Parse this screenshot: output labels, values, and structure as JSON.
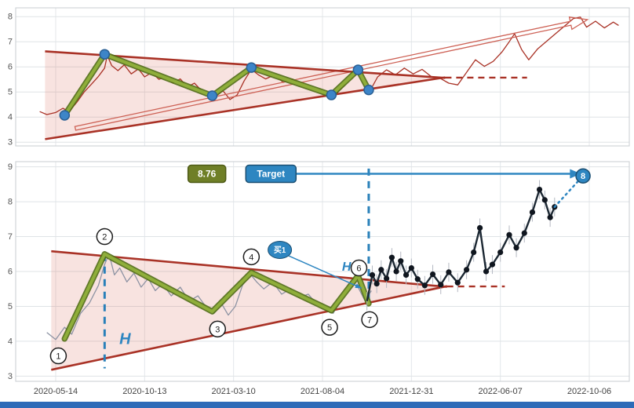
{
  "page": {
    "background": "#ffffff",
    "footer_bar_color": "#2e6bb8"
  },
  "chart_data": [
    {
      "id": "top_chart",
      "type": "line",
      "title": "",
      "ylim": [
        2.85,
        8.35
      ],
      "yticks": [
        3,
        4,
        5,
        6,
        7,
        8
      ],
      "xlim": [
        -0.45,
        6.45
      ],
      "xticks": [
        0,
        1,
        2,
        3,
        4,
        5,
        6
      ],
      "grid": true,
      "price_series": {
        "name": "price",
        "color": "#a93226",
        "points": [
          [
            -0.18,
            4.22
          ],
          [
            -0.1,
            4.1
          ],
          [
            0.0,
            4.18
          ],
          [
            0.08,
            4.35
          ],
          [
            0.15,
            4.22
          ],
          [
            0.24,
            4.6
          ],
          [
            0.32,
            5.0
          ],
          [
            0.4,
            5.3
          ],
          [
            0.48,
            5.62
          ],
          [
            0.55,
            5.95
          ],
          [
            0.58,
            6.45
          ],
          [
            0.63,
            6.05
          ],
          [
            0.7,
            5.85
          ],
          [
            0.77,
            6.08
          ],
          [
            0.85,
            5.72
          ],
          [
            0.93,
            5.92
          ],
          [
            1.0,
            5.6
          ],
          [
            1.08,
            5.78
          ],
          [
            1.16,
            5.5
          ],
          [
            1.24,
            5.62
          ],
          [
            1.32,
            5.35
          ],
          [
            1.4,
            5.52
          ],
          [
            1.48,
            5.2
          ],
          [
            1.56,
            5.35
          ],
          [
            1.64,
            5.05
          ],
          [
            1.72,
            4.92
          ],
          [
            1.8,
            4.82
          ],
          [
            1.88,
            5.05
          ],
          [
            1.96,
            4.7
          ],
          [
            2.04,
            4.88
          ],
          [
            2.12,
            5.45
          ],
          [
            2.2,
            5.9
          ],
          [
            2.28,
            5.68
          ],
          [
            2.36,
            5.52
          ],
          [
            2.46,
            5.68
          ],
          [
            2.56,
            5.38
          ],
          [
            2.66,
            5.52
          ],
          [
            2.76,
            5.28
          ],
          [
            2.86,
            5.18
          ],
          [
            2.96,
            5.02
          ],
          [
            3.06,
            4.92
          ],
          [
            3.14,
            4.85
          ],
          [
            3.22,
            5.18
          ],
          [
            3.32,
            5.6
          ],
          [
            3.4,
            5.75
          ],
          [
            3.47,
            5.4
          ],
          [
            3.54,
            5.08
          ],
          [
            3.62,
            5.6
          ],
          [
            3.72,
            5.88
          ],
          [
            3.82,
            5.68
          ],
          [
            3.92,
            5.95
          ],
          [
            4.02,
            5.72
          ],
          [
            4.12,
            5.9
          ],
          [
            4.22,
            5.62
          ],
          [
            4.32,
            5.55
          ],
          [
            4.42,
            5.35
          ],
          [
            4.52,
            5.28
          ],
          [
            4.62,
            5.78
          ],
          [
            4.72,
            6.28
          ],
          [
            4.82,
            6.02
          ],
          [
            4.92,
            6.22
          ],
          [
            5.02,
            6.6
          ],
          [
            5.1,
            7.0
          ],
          [
            5.16,
            7.32
          ],
          [
            5.24,
            6.68
          ],
          [
            5.32,
            6.28
          ],
          [
            5.42,
            6.72
          ],
          [
            5.52,
            7.02
          ],
          [
            5.62,
            7.32
          ],
          [
            5.72,
            7.62
          ],
          [
            5.82,
            7.92
          ],
          [
            5.9,
            7.98
          ],
          [
            5.97,
            7.58
          ],
          [
            6.07,
            7.82
          ],
          [
            6.17,
            7.55
          ],
          [
            6.27,
            7.78
          ],
          [
            6.33,
            7.65
          ]
        ]
      },
      "triangle": {
        "fill": "rgba(217,102,85,0.18)",
        "stroke": "#a93226",
        "upper": [
          [
            -0.12,
            6.62
          ],
          [
            4.38,
            5.56
          ]
        ],
        "lower": [
          [
            -0.12,
            3.12
          ],
          [
            4.38,
            5.58
          ]
        ]
      },
      "apex_dash": {
        "color": "#a93226",
        "from": [
          4.38,
          5.57
        ],
        "to": [
          5.3,
          5.57
        ]
      },
      "zigzag": {
        "color_outer": "#4f6b15",
        "color_inner": "#8fae3a",
        "points": [
          [
            0.1,
            4.07
          ],
          [
            0.55,
            6.5
          ],
          [
            1.76,
            4.85
          ],
          [
            2.2,
            5.97
          ],
          [
            3.1,
            4.88
          ],
          [
            3.4,
            5.88
          ],
          [
            3.52,
            5.08
          ]
        ]
      },
      "pivot_dots": {
        "color": "#3d85c8",
        "stroke": "#2a5f94",
        "radius": 6
      },
      "trend_arrow": {
        "color": "#cd6155",
        "from": [
          0.22,
          3.55
        ],
        "to": [
          5.98,
          7.88
        ]
      }
    },
    {
      "id": "bottom_chart",
      "type": "line",
      "title": "",
      "ylim": [
        2.85,
        9.15
      ],
      "yticks": [
        3,
        4,
        5,
        6,
        7,
        8,
        9
      ],
      "xlim": [
        -0.45,
        6.45
      ],
      "xticks": [
        0,
        1,
        2,
        3,
        4,
        5,
        6
      ],
      "grid": true,
      "xtick_labels": [
        "2020-05-14",
        "2020-10-13",
        "2021-03-10",
        "2021-08-04",
        "2021-12-31",
        "2022-06-07",
        "2022-10-06"
      ],
      "price_series": {
        "name": "price-history",
        "color": "#8d93a3",
        "points": [
          [
            -0.1,
            4.25
          ],
          [
            0.0,
            4.05
          ],
          [
            0.1,
            4.4
          ],
          [
            0.18,
            4.2
          ],
          [
            0.28,
            4.8
          ],
          [
            0.38,
            5.1
          ],
          [
            0.48,
            5.6
          ],
          [
            0.55,
            6.2
          ],
          [
            0.6,
            6.5
          ],
          [
            0.66,
            5.9
          ],
          [
            0.72,
            6.1
          ],
          [
            0.8,
            5.7
          ],
          [
            0.88,
            5.95
          ],
          [
            0.96,
            5.55
          ],
          [
            1.04,
            5.8
          ],
          [
            1.12,
            5.45
          ],
          [
            1.2,
            5.65
          ],
          [
            1.3,
            5.3
          ],
          [
            1.4,
            5.55
          ],
          [
            1.5,
            5.15
          ],
          [
            1.6,
            5.3
          ],
          [
            1.7,
            4.95
          ],
          [
            1.78,
            4.8
          ],
          [
            1.86,
            5.1
          ],
          [
            1.94,
            4.75
          ],
          [
            2.02,
            5.0
          ],
          [
            2.1,
            5.6
          ],
          [
            2.18,
            5.95
          ],
          [
            2.26,
            5.7
          ],
          [
            2.34,
            5.5
          ],
          [
            2.44,
            5.7
          ],
          [
            2.54,
            5.35
          ],
          [
            2.64,
            5.5
          ],
          [
            2.74,
            5.25
          ],
          [
            2.84,
            5.35
          ],
          [
            2.94,
            5.05
          ],
          [
            3.04,
            4.9
          ],
          [
            3.12,
            4.8
          ],
          [
            3.22,
            5.25
          ],
          [
            3.32,
            5.7
          ],
          [
            3.4,
            5.55
          ],
          [
            3.48,
            5.15
          ],
          [
            3.55,
            5.45
          ]
        ]
      },
      "triangle": {
        "fill": "rgba(217,102,85,0.18)",
        "stroke": "#a93226",
        "upper": [
          [
            -0.05,
            6.58
          ],
          [
            4.4,
            5.56
          ]
        ],
        "lower": [
          [
            -0.05,
            3.18
          ],
          [
            4.4,
            5.58
          ]
        ]
      },
      "apex_dash": {
        "color": "#a93226",
        "from": [
          4.4,
          5.57
        ],
        "to": [
          5.05,
          5.57
        ]
      },
      "zigzag": {
        "color_outer": "#4f6b15",
        "color_inner": "#8fae3a",
        "points": [
          [
            0.1,
            4.07
          ],
          [
            0.55,
            6.5
          ],
          [
            1.76,
            4.85
          ],
          [
            2.2,
            5.97
          ],
          [
            3.1,
            4.88
          ],
          [
            3.4,
            5.88
          ],
          [
            3.52,
            5.08
          ]
        ]
      },
      "post_breakout": {
        "line_color": "#1c2833",
        "dot_color": "#10161f",
        "wick_color": "#b4b8c2",
        "points": [
          [
            3.5,
            5.15
          ],
          [
            3.56,
            5.9
          ],
          [
            3.61,
            5.65
          ],
          [
            3.66,
            6.05
          ],
          [
            3.72,
            5.8
          ],
          [
            3.78,
            6.4
          ],
          [
            3.83,
            6.0
          ],
          [
            3.88,
            6.3
          ],
          [
            3.94,
            5.9
          ],
          [
            4.0,
            6.1
          ],
          [
            4.07,
            5.78
          ],
          [
            4.15,
            5.6
          ],
          [
            4.24,
            5.92
          ],
          [
            4.33,
            5.62
          ],
          [
            4.42,
            5.98
          ],
          [
            4.52,
            5.68
          ],
          [
            4.62,
            6.05
          ],
          [
            4.7,
            6.55
          ],
          [
            4.77,
            7.25
          ],
          [
            4.84,
            6.0
          ],
          [
            4.91,
            6.2
          ],
          [
            5.0,
            6.55
          ],
          [
            5.1,
            7.05
          ],
          [
            5.18,
            6.68
          ],
          [
            5.27,
            7.1
          ],
          [
            5.36,
            7.7
          ],
          [
            5.44,
            8.35
          ],
          [
            5.5,
            8.05
          ],
          [
            5.56,
            7.55
          ],
          [
            5.61,
            7.85
          ]
        ]
      },
      "dotted_tail": {
        "color": "#2e86c1",
        "from": [
          5.61,
          7.85
        ],
        "to": [
          5.9,
          8.66
        ]
      },
      "vlines": [
        {
          "t": 0.55,
          "p1": 6.5,
          "p2": 3.22
        },
        {
          "t": 3.52,
          "p1": 8.95,
          "p2": 5.05
        }
      ],
      "h_labels": [
        {
          "text": "H",
          "t": 0.78,
          "p": 3.92,
          "size": 20
        },
        {
          "text": "H",
          "t": 3.27,
          "p": 6.02,
          "size": 16
        }
      ],
      "value_badge": {
        "text": "8.76",
        "t": 1.7,
        "p": 8.8,
        "fill": "#6f7f27",
        "border": "#4e5a17",
        "text_color": "#ffffff"
      },
      "target_badge": {
        "text": "Target",
        "t": 2.42,
        "p": 8.8,
        "fill": "#2e86c1",
        "border": "#1b4f72",
        "text_color": "#ffffff"
      },
      "target_arrow": {
        "color": "#2e86c1",
        "from": [
          2.68,
          8.8
        ],
        "to": [
          5.8,
          8.8
        ]
      },
      "buy_badge": {
        "text": "买1",
        "t": 2.52,
        "p": 6.62,
        "fill": "#2e86c1",
        "border": "#1b4f72",
        "text_color": "#ffffff",
        "line_to": [
          3.44,
          5.52
        ]
      },
      "wave_points": [
        {
          "n": "1",
          "t": 0.1,
          "p": 4.07,
          "ct": 0.03,
          "cp": 3.58
        },
        {
          "n": "2",
          "t": 0.55,
          "p": 6.5,
          "ct": 0.55,
          "cp": 7.0
        },
        {
          "n": "3",
          "t": 1.76,
          "p": 4.85,
          "ct": 1.82,
          "cp": 4.35
        },
        {
          "n": "4",
          "t": 2.2,
          "p": 5.97,
          "ct": 2.2,
          "cp": 6.42
        },
        {
          "n": "5",
          "t": 3.1,
          "p": 4.88,
          "ct": 3.08,
          "cp": 4.4
        },
        {
          "n": "6",
          "t": 3.4,
          "p": 5.88,
          "ct": 3.41,
          "cp": 6.1
        },
        {
          "n": "7",
          "t": 3.52,
          "p": 5.08,
          "ct": 3.53,
          "cp": 4.62
        }
      ],
      "point8": {
        "label": "8",
        "t": 5.93,
        "p": 8.74,
        "fill": "#2e86c1",
        "stroke": "#1b4f72"
      }
    }
  ]
}
